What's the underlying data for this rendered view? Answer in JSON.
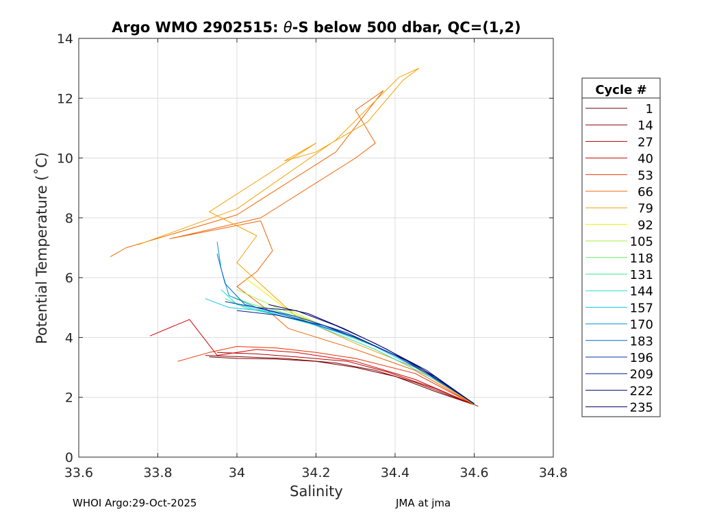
{
  "chart_data": {
    "type": "line",
    "title_prefix": "Argo WMO 2902515: ",
    "title_symbol": "θ",
    "title_suffix": "-S below 500 dbar,  QC=(1,2)",
    "xlabel": "Salinity",
    "ylabel": "Potential Temperature (˚C)",
    "xlim": [
      33.6,
      34.8
    ],
    "ylim": [
      0,
      14
    ],
    "xticks": [
      33.6,
      33.8,
      34.0,
      34.2,
      34.4,
      34.6,
      34.8
    ],
    "xtick_labels": [
      "33.6",
      "33.8",
      "34",
      "34.2",
      "34.4",
      "34.6",
      "34.8"
    ],
    "yticks": [
      0,
      2,
      4,
      6,
      8,
      10,
      12,
      14
    ],
    "ytick_labels": [
      "0",
      "2",
      "4",
      "6",
      "8",
      "10",
      "12",
      "14"
    ],
    "grid": true,
    "legend": {
      "title": "Cycle #",
      "placement": "outside-right",
      "entries": [
        {
          "label": "1",
          "color": "#6b0000"
        },
        {
          "label": "14",
          "color": "#8b0000"
        },
        {
          "label": "27",
          "color": "#ad0000"
        },
        {
          "label": "40",
          "color": "#cf0000"
        },
        {
          "label": "53",
          "color": "#e63000"
        },
        {
          "label": "66",
          "color": "#f06400"
        },
        {
          "label": "79",
          "color": "#f5a000"
        },
        {
          "label": "92",
          "color": "#f0f000"
        },
        {
          "label": "105",
          "color": "#a6f040"
        },
        {
          "label": "118",
          "color": "#60f060"
        },
        {
          "label": "131",
          "color": "#30e890"
        },
        {
          "label": "144",
          "color": "#20e0c8"
        },
        {
          "label": "157",
          "color": "#10c0f0"
        },
        {
          "label": "170",
          "color": "#0096d8"
        },
        {
          "label": "183",
          "color": "#0066d0"
        },
        {
          "label": "196",
          "color": "#0030b0"
        },
        {
          "label": "209",
          "color": "#001a8c"
        },
        {
          "label": "222",
          "color": "#000a70"
        },
        {
          "label": "235",
          "color": "#000060"
        }
      ]
    },
    "series": [
      {
        "name": "1",
        "color": "#6b0000",
        "points": [
          [
            33.93,
            3.35
          ],
          [
            34.0,
            3.3
          ],
          [
            34.1,
            3.28
          ],
          [
            34.2,
            3.2
          ],
          [
            34.3,
            3.0
          ],
          [
            34.4,
            2.7
          ],
          [
            34.5,
            2.2
          ],
          [
            34.6,
            1.75
          ]
        ]
      },
      {
        "name": "14",
        "color": "#8b0000",
        "points": [
          [
            33.92,
            3.4
          ],
          [
            34.02,
            3.35
          ],
          [
            34.12,
            3.3
          ],
          [
            34.25,
            3.15
          ],
          [
            34.35,
            2.9
          ],
          [
            34.45,
            2.5
          ],
          [
            34.6,
            1.75
          ]
        ]
      },
      {
        "name": "27",
        "color": "#ad0000",
        "points": [
          [
            33.95,
            3.5
          ],
          [
            34.05,
            3.45
          ],
          [
            34.15,
            3.35
          ],
          [
            34.28,
            3.2
          ],
          [
            34.38,
            2.85
          ],
          [
            34.5,
            2.3
          ],
          [
            34.61,
            1.7
          ]
        ]
      },
      {
        "name": "40",
        "color": "#cf0000",
        "points": [
          [
            33.78,
            4.05
          ],
          [
            33.88,
            4.6
          ],
          [
            33.95,
            3.4
          ],
          [
            34.05,
            3.6
          ],
          [
            34.15,
            3.5
          ],
          [
            34.3,
            3.2
          ],
          [
            34.45,
            2.6
          ],
          [
            34.6,
            1.75
          ]
        ]
      },
      {
        "name": "53",
        "color": "#e63000",
        "points": [
          [
            33.85,
            3.2
          ],
          [
            33.93,
            3.5
          ],
          [
            34.0,
            3.7
          ],
          [
            34.1,
            3.65
          ],
          [
            34.2,
            3.5
          ],
          [
            34.3,
            3.3
          ],
          [
            34.45,
            2.8
          ],
          [
            34.6,
            1.75
          ]
        ]
      },
      {
        "name": "66",
        "color": "#f06400",
        "points": [
          [
            33.68,
            6.7
          ],
          [
            33.72,
            7.0
          ],
          [
            34.0,
            8.1
          ],
          [
            34.25,
            10.2
          ],
          [
            34.37,
            12.25
          ],
          [
            34.3,
            11.6
          ],
          [
            34.35,
            10.5
          ],
          [
            34.3,
            10.0
          ],
          [
            34.06,
            8.0
          ],
          [
            33.83,
            7.3
          ],
          [
            34.06,
            7.9
          ],
          [
            34.09,
            6.9
          ],
          [
            34.05,
            6.2
          ],
          [
            34.0,
            5.7
          ],
          [
            34.07,
            5.0
          ],
          [
            34.13,
            4.3
          ],
          [
            34.3,
            3.6
          ],
          [
            34.45,
            2.9
          ],
          [
            34.6,
            1.75
          ]
        ]
      },
      {
        "name": "79",
        "color": "#f5a000",
        "points": [
          [
            33.75,
            7.1
          ],
          [
            34.0,
            8.3
          ],
          [
            34.25,
            10.6
          ],
          [
            34.41,
            12.7
          ],
          [
            34.46,
            13.0
          ],
          [
            34.42,
            12.6
          ],
          [
            34.33,
            11.2
          ],
          [
            34.2,
            10.2
          ],
          [
            34.12,
            9.9
          ],
          [
            34.2,
            10.5
          ],
          [
            33.93,
            8.2
          ],
          [
            34.05,
            7.4
          ],
          [
            34.0,
            6.5
          ],
          [
            34.05,
            5.9
          ],
          [
            34.1,
            5.3
          ],
          [
            34.15,
            4.7
          ],
          [
            34.3,
            3.8
          ],
          [
            34.45,
            3.0
          ],
          [
            34.6,
            1.75
          ]
        ]
      },
      {
        "name": "92",
        "color": "#f0f000",
        "points": [
          [
            34.02,
            6.0
          ],
          [
            34.05,
            5.7
          ],
          [
            34.08,
            5.4
          ],
          [
            34.12,
            5.0
          ],
          [
            34.2,
            4.5
          ]
        ]
      },
      {
        "name": "105",
        "color": "#a6f040",
        "points": [
          [
            34.0,
            5.6
          ],
          [
            34.05,
            5.3
          ],
          [
            34.1,
            5.0
          ],
          [
            34.18,
            4.6
          ],
          [
            34.28,
            4.1
          ]
        ]
      },
      {
        "name": "118",
        "color": "#60f060",
        "points": [
          [
            33.98,
            5.4
          ],
          [
            34.04,
            5.1
          ],
          [
            34.1,
            4.9
          ],
          [
            34.2,
            4.5
          ],
          [
            34.3,
            4.0
          ]
        ]
      },
      {
        "name": "131",
        "color": "#30e890",
        "points": [
          [
            33.97,
            5.3
          ],
          [
            34.02,
            5.0
          ],
          [
            34.1,
            4.75
          ],
          [
            34.22,
            4.35
          ],
          [
            34.35,
            3.7
          ]
        ]
      },
      {
        "name": "144",
        "color": "#20e0c8",
        "points": [
          [
            33.96,
            5.6
          ],
          [
            34.0,
            5.1
          ],
          [
            34.08,
            4.85
          ],
          [
            34.2,
            4.4
          ],
          [
            34.35,
            3.6
          ],
          [
            34.5,
            2.6
          ],
          [
            34.6,
            1.8
          ]
        ]
      },
      {
        "name": "157",
        "color": "#10c0f0",
        "points": [
          [
            33.92,
            5.3
          ],
          [
            33.98,
            5.0
          ],
          [
            34.06,
            4.9
          ],
          [
            34.18,
            4.5
          ],
          [
            34.32,
            3.9
          ],
          [
            34.48,
            2.8
          ],
          [
            34.6,
            1.78
          ]
        ]
      },
      {
        "name": "170",
        "color": "#0096d8",
        "points": [
          [
            33.95,
            7.2
          ],
          [
            33.96,
            6.3
          ],
          [
            33.98,
            5.4
          ],
          [
            34.05,
            5.0
          ],
          [
            34.15,
            4.65
          ],
          [
            34.3,
            4.0
          ],
          [
            34.45,
            3.1
          ],
          [
            34.6,
            1.78
          ]
        ]
      },
      {
        "name": "183",
        "color": "#0066d0",
        "points": [
          [
            33.95,
            6.8
          ],
          [
            33.97,
            5.8
          ],
          [
            34.02,
            5.1
          ],
          [
            34.12,
            4.75
          ],
          [
            34.28,
            4.1
          ],
          [
            34.42,
            3.3
          ],
          [
            34.6,
            1.78
          ]
        ]
      },
      {
        "name": "196",
        "color": "#0030b0",
        "points": [
          [
            33.97,
            5.2
          ],
          [
            34.05,
            5.0
          ],
          [
            34.15,
            4.7
          ],
          [
            34.28,
            4.15
          ],
          [
            34.4,
            3.4
          ],
          [
            34.52,
            2.5
          ],
          [
            34.6,
            1.78
          ]
        ]
      },
      {
        "name": "209",
        "color": "#001a8c",
        "points": [
          [
            34.0,
            4.9
          ],
          [
            34.1,
            4.75
          ],
          [
            34.22,
            4.4
          ],
          [
            34.32,
            3.9
          ],
          [
            34.45,
            3.1
          ],
          [
            34.6,
            1.78
          ]
        ]
      },
      {
        "name": "222",
        "color": "#000a70",
        "points": [
          [
            34.05,
            5.0
          ],
          [
            34.15,
            4.9
          ],
          [
            34.25,
            4.4
          ],
          [
            34.35,
            3.8
          ],
          [
            34.48,
            2.9
          ],
          [
            34.6,
            1.78
          ]
        ]
      },
      {
        "name": "235",
        "color": "#000060",
        "points": [
          [
            34.08,
            5.1
          ],
          [
            34.18,
            4.8
          ],
          [
            34.27,
            4.3
          ],
          [
            34.38,
            3.6
          ],
          [
            34.5,
            2.7
          ],
          [
            34.6,
            1.78
          ]
        ]
      }
    ]
  },
  "footer": {
    "left": "WHOI Argo:29-Oct-2025",
    "right": "JMA at jma"
  }
}
